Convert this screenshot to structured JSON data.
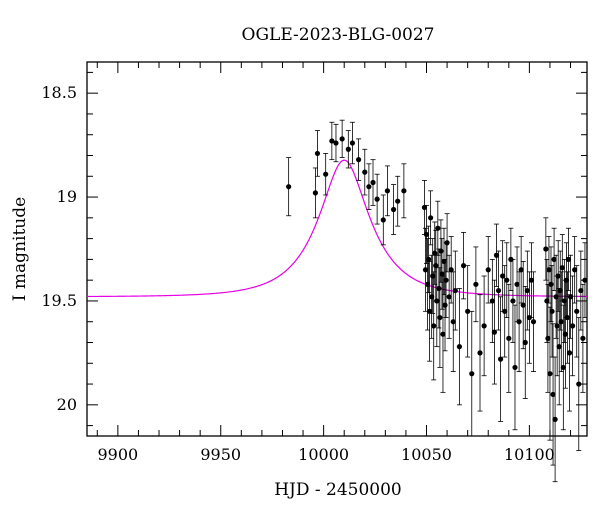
{
  "chart_data": {
    "type": "scatter",
    "title": "OGLE-2023-BLG-0027",
    "xlabel": "HJD - 2450000",
    "ylabel": "I magnitude",
    "xlim": [
      9885,
      10128
    ],
    "ylim": [
      20.15,
      18.35
    ],
    "y_inverted": true,
    "xticks": [
      9900,
      9950,
      10000,
      10050,
      10100
    ],
    "xtick_labels": [
      "9900",
      "9950",
      "10000",
      "10050",
      "10100"
    ],
    "yticks": [
      18.5,
      19,
      19.5,
      20
    ],
    "ytick_labels": [
      "18.5",
      "19",
      "19.5",
      "20"
    ],
    "grid": false,
    "colors": {
      "model": "#e600e6",
      "points": "#000000"
    },
    "model": {
      "name": "",
      "t0": 10010,
      "tE": 24,
      "u0": 0.45,
      "base_mag": 19.48,
      "peak_mag": 18.75,
      "x": [
        9885,
        9900,
        9920,
        9940,
        9950,
        9960,
        9970,
        9980,
        9990,
        10000,
        10005,
        10010,
        10015,
        10020,
        10030,
        10040,
        10050,
        10060,
        10070,
        10080,
        10090,
        10100,
        10110,
        10120,
        10128
      ]
    },
    "series": [
      {
        "name": "",
        "x": [
          9983,
          9996,
          9997,
          10001,
          10004,
          10006,
          10009,
          10012,
          10014,
          10017,
          10020,
          10022,
          10024,
          10026,
          10029,
          10031,
          10034,
          10036,
          10039,
          10049.0,
          10049.5,
          10050.0,
          10050.5,
          10051.0,
          10051.5,
          10052.0,
          10052.5,
          10053.0,
          10053.5,
          10054.0,
          10054.5,
          10055.0,
          10055.5,
          10056.0,
          10056.5,
          10057.0,
          10057.5,
          10058.0,
          10058.5,
          10059.0,
          10059.5,
          10060.0,
          10061,
          10062,
          10063,
          10064,
          10066,
          10068,
          10070,
          10072,
          10074,
          10076,
          10078,
          10080,
          10082,
          10083,
          10084,
          10085,
          10086,
          10087,
          10088,
          10089,
          10090,
          10091,
          10092,
          10093,
          10094,
          10095,
          10096,
          10097,
          10098,
          10099,
          10100,
          10101,
          10102,
          10108,
          10108.5,
          10109,
          10109.5,
          10110,
          10110.5,
          10111,
          10111.5,
          10112,
          10112.5,
          10113,
          10113.5,
          10114,
          10114.5,
          10115,
          10115.5,
          10116,
          10116.5,
          10117,
          10117.5,
          10118,
          10118.5,
          10119,
          10119.5,
          10120,
          10121,
          10122,
          10123,
          10124,
          10125,
          10126,
          10127
        ],
        "y": [
          18.95,
          18.98,
          18.79,
          18.89,
          18.73,
          18.74,
          18.72,
          18.77,
          18.74,
          18.82,
          18.88,
          18.95,
          18.93,
          19.01,
          19.11,
          18.97,
          19.06,
          19.02,
          18.97,
          19.05,
          19.35,
          19.18,
          19.42,
          19.3,
          19.55,
          19.1,
          19.48,
          19.38,
          19.62,
          19.27,
          19.33,
          19.5,
          19.15,
          19.44,
          19.58,
          19.26,
          19.37,
          19.66,
          19.31,
          19.52,
          19.4,
          19.22,
          19.48,
          19.35,
          19.6,
          19.45,
          19.72,
          19.33,
          19.55,
          19.85,
          19.42,
          19.75,
          19.62,
          19.35,
          19.5,
          19.65,
          19.28,
          19.45,
          19.78,
          19.38,
          19.55,
          19.4,
          19.68,
          19.3,
          19.5,
          19.82,
          19.42,
          19.6,
          19.35,
          19.52,
          19.7,
          19.45,
          19.58,
          19.4,
          19.6,
          19.25,
          19.5,
          19.68,
          19.35,
          19.85,
          19.42,
          19.55,
          19.95,
          19.3,
          20.07,
          19.48,
          19.62,
          19.38,
          19.72,
          19.45,
          19.6,
          19.34,
          19.82,
          19.5,
          19.66,
          19.4,
          19.58,
          19.3,
          19.75,
          19.48,
          19.62,
          19.35,
          19.55,
          19.9,
          19.45,
          19.68,
          19.4
        ],
        "err": [
          0.14,
          0.12,
          0.11,
          0.1,
          0.09,
          0.09,
          0.09,
          0.09,
          0.1,
          0.1,
          0.11,
          0.11,
          0.11,
          0.12,
          0.12,
          0.12,
          0.12,
          0.12,
          0.13,
          0.13,
          0.2,
          0.14,
          0.22,
          0.16,
          0.24,
          0.13,
          0.2,
          0.18,
          0.26,
          0.15,
          0.17,
          0.22,
          0.13,
          0.19,
          0.24,
          0.15,
          0.17,
          0.28,
          0.16,
          0.22,
          0.18,
          0.14,
          0.2,
          0.16,
          0.24,
          0.19,
          0.28,
          0.16,
          0.22,
          0.3,
          0.18,
          0.28,
          0.24,
          0.16,
          0.2,
          0.25,
          0.15,
          0.19,
          0.3,
          0.17,
          0.22,
          0.18,
          0.26,
          0.15,
          0.2,
          0.3,
          0.18,
          0.24,
          0.16,
          0.21,
          0.27,
          0.19,
          0.22,
          0.18,
          0.24,
          0.15,
          0.2,
          0.26,
          0.16,
          0.32,
          0.18,
          0.22,
          0.34,
          0.15,
          0.3,
          0.2,
          0.24,
          0.17,
          0.28,
          0.19,
          0.24,
          0.16,
          0.3,
          0.2,
          0.26,
          0.18,
          0.22,
          0.15,
          0.28,
          0.2,
          0.24,
          0.16,
          0.22,
          0.32,
          0.19,
          0.26,
          0.18
        ]
      }
    ]
  }
}
